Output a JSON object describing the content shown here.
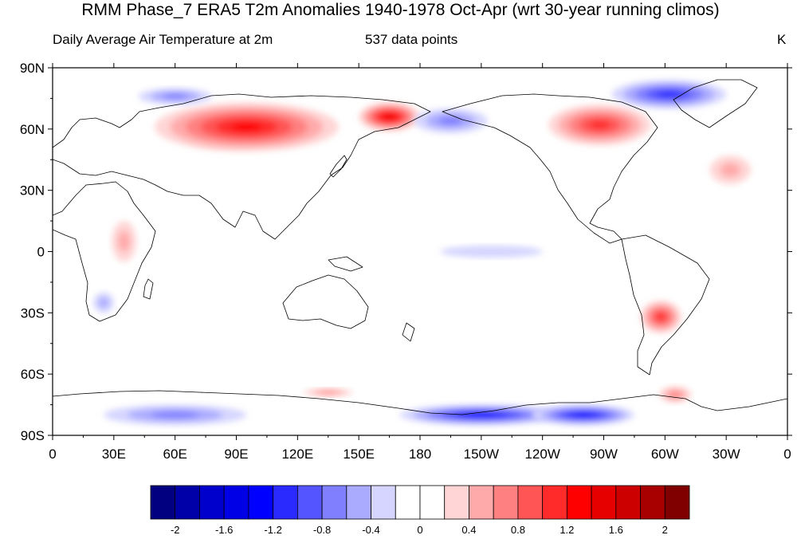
{
  "title": "RMM Phase_7 ERA5 T2m Anomalies 1940-1978 Oct-Apr (wrt 30-year running climos)",
  "subtitle_left": "Daily Average Air Temperature at 2m",
  "subtitle_center": "537 data points",
  "units": "K",
  "lat_labels": [
    "90N",
    "60N",
    "30N",
    "0",
    "30S",
    "60S",
    "90S"
  ],
  "lon_labels": [
    "0",
    "30E",
    "60E",
    "90E",
    "120E",
    "150E",
    "180",
    "150W",
    "120W",
    "90W",
    "60W",
    "30W",
    "0"
  ],
  "colorbar": {
    "colors": [
      "#000080",
      "#0000a8",
      "#0000cd",
      "#0000e6",
      "#0000ff",
      "#2a2aff",
      "#5555ff",
      "#8080ff",
      "#aaaaff",
      "#d5d5ff",
      "#ffffff",
      "#ffffff",
      "#ffd5d5",
      "#ffaaaa",
      "#ff8080",
      "#ff5555",
      "#ff2a2a",
      "#ff0000",
      "#e60000",
      "#cd0000",
      "#a80000",
      "#800000"
    ],
    "labels": [
      "-2",
      "-1.6",
      "-1.2",
      "-0.8",
      "-0.4",
      "0",
      "0.4",
      "0.8",
      "1.2",
      "1.6",
      "2"
    ]
  },
  "anomaly_regions": [
    {
      "name": "Central Siberia warm core",
      "lon": 85,
      "lat": 60,
      "rx": 25,
      "ry": 9,
      "value": 1.8
    },
    {
      "name": "Siberia warm",
      "lon": 95,
      "lat": 61,
      "rx": 45,
      "ry": 12,
      "value": 1.2
    },
    {
      "name": "Northeast Siberia warm",
      "lon": 165,
      "lat": 66,
      "rx": 15,
      "ry": 7,
      "value": 1.3
    },
    {
      "name": "Canada warm",
      "lon": -92,
      "lat": 62,
      "rx": 25,
      "ry": 10,
      "value": 1.0
    },
    {
      "name": "Greenland cold",
      "lon": -58,
      "lat": 77,
      "rx": 28,
      "ry": 7,
      "value": -1.0
    },
    {
      "name": "Kara Sea cold",
      "lon": 60,
      "lat": 76,
      "rx": 18,
      "ry": 4,
      "value": -0.6
    },
    {
      "name": "Bering Sea cold",
      "lon": -165,
      "lat": 64,
      "rx": 18,
      "ry": 6,
      "value": -0.6
    },
    {
      "name": "Southern South America warm",
      "lon": -62,
      "lat": -32,
      "rx": 10,
      "ry": 8,
      "value": 1.0
    },
    {
      "name": "Ross Sea cold",
      "lon": -150,
      "lat": -80,
      "rx": 40,
      "ry": 5,
      "value": -1.2
    },
    {
      "name": "West Antarctica cold",
      "lon": -100,
      "lat": -80,
      "rx": 25,
      "ry": 5,
      "value": -1.2
    },
    {
      "name": "East Antarctica cold",
      "lon": 60,
      "lat": -80,
      "rx": 35,
      "ry": 5,
      "value": -0.6
    },
    {
      "name": "Antarctic Peninsula warm",
      "lon": -55,
      "lat": -70,
      "rx": 8,
      "ry": 4,
      "value": 0.6
    },
    {
      "name": "Southern Ocean warm",
      "lon": 135,
      "lat": -69,
      "rx": 12,
      "ry": 2,
      "value": 0.5
    },
    {
      "name": "Southern Africa cold",
      "lon": 25,
      "lat": -25,
      "rx": 5,
      "ry": 5,
      "value": -0.4
    },
    {
      "name": "East Africa warm",
      "lon": 35,
      "lat": 5,
      "rx": 6,
      "ry": 10,
      "value": 0.4
    },
    {
      "name": "Eastern Pacific cool",
      "lon": -145,
      "lat": 0,
      "rx": 25,
      "ry": 3,
      "value": -0.2
    },
    {
      "name": "North Atlantic warm",
      "lon": -28,
      "lat": 40,
      "rx": 10,
      "ry": 7,
      "value": 0.4
    }
  ]
}
